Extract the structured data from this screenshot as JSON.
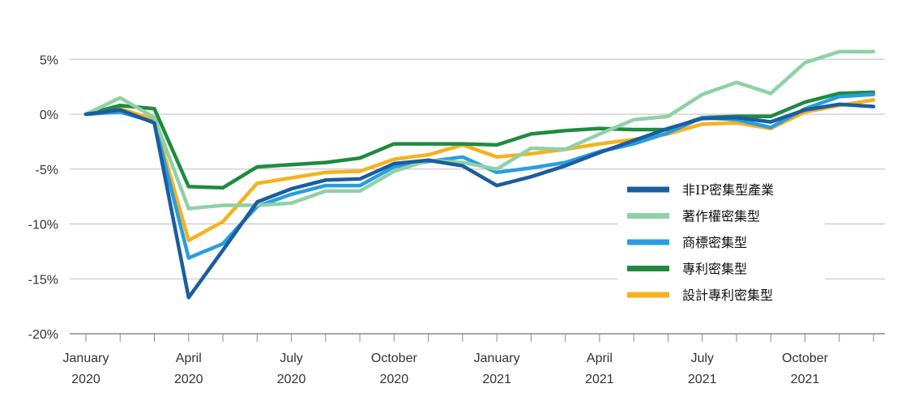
{
  "chart_data": {
    "type": "line",
    "title": "",
    "xlabel": "",
    "ylabel": "",
    "x": [
      "2020-01",
      "2020-02",
      "2020-03",
      "2020-04",
      "2020-05",
      "2020-06",
      "2020-07",
      "2020-08",
      "2020-09",
      "2020-10",
      "2020-11",
      "2020-12",
      "2021-01",
      "2021-02",
      "2021-03",
      "2021-04",
      "2021-05",
      "2021-06",
      "2021-07",
      "2021-08",
      "2021-09",
      "2021-10",
      "2021-11",
      "2021-12"
    ],
    "x_tick_labels": [
      {
        "x": "2020-01",
        "lines": [
          "January",
          "2020"
        ]
      },
      {
        "x": "2020-04",
        "lines": [
          "April",
          "2020"
        ]
      },
      {
        "x": "2020-07",
        "lines": [
          "July",
          "2020"
        ]
      },
      {
        "x": "2020-10",
        "lines": [
          "October",
          "2020"
        ]
      },
      {
        "x": "2021-01",
        "lines": [
          "January",
          "2021"
        ]
      },
      {
        "x": "2021-04",
        "lines": [
          "April",
          "2021"
        ]
      },
      {
        "x": "2021-07",
        "lines": [
          "July",
          "2021"
        ]
      },
      {
        "x": "2021-10",
        "lines": [
          "October",
          "2021"
        ]
      }
    ],
    "y_ticks": [
      5,
      0,
      -5,
      -10,
      -15,
      -20
    ],
    "y_tick_labels": [
      "5%",
      "0%",
      "-5%",
      "-10%",
      "-15%",
      "-20%"
    ],
    "ylim": [
      -20,
      6
    ],
    "grid": "horizontal",
    "legend_position": "bottom-right",
    "series": [
      {
        "name": "非IP密集型產業",
        "color": "#1b5d9e",
        "values": [
          0,
          0.4,
          -0.8,
          -16.7,
          -12.4,
          -8.0,
          -6.8,
          -6.0,
          -5.9,
          -4.5,
          -4.2,
          -4.7,
          -6.5,
          -5.7,
          -4.7,
          -3.5,
          -2.4,
          -1.3,
          -0.4,
          -0.3,
          -0.7,
          0.4,
          0.9,
          0.7
        ]
      },
      {
        "name": "著作權密集型",
        "color": "#8fd1a6",
        "values": [
          0,
          1.5,
          -0.3,
          -8.6,
          -8.3,
          -8.3,
          -8.1,
          -7.0,
          -7.0,
          -5.2,
          -4.2,
          -4.4,
          -5.0,
          -3.1,
          -3.2,
          -1.8,
          -0.5,
          -0.2,
          1.8,
          2.9,
          1.9,
          4.7,
          5.7,
          5.7
        ]
      },
      {
        "name": "商標密集型",
        "color": "#2a9de0",
        "values": [
          0,
          0.2,
          -0.7,
          -13.1,
          -11.8,
          -8.4,
          -7.3,
          -6.5,
          -6.5,
          -4.8,
          -4.3,
          -3.9,
          -5.3,
          -4.9,
          -4.4,
          -3.4,
          -2.7,
          -1.7,
          -0.3,
          -0.5,
          -1.2,
          0.5,
          1.6,
          1.8
        ]
      },
      {
        "name": "專利密集型",
        "color": "#1f8b3f",
        "values": [
          0,
          0.8,
          0.5,
          -6.6,
          -6.7,
          -4.8,
          -4.6,
          -4.4,
          -4.0,
          -2.7,
          -2.7,
          -2.7,
          -2.8,
          -1.8,
          -1.5,
          -1.3,
          -1.4,
          -1.4,
          -0.3,
          -0.2,
          -0.2,
          1.1,
          1.9,
          2.0
        ]
      },
      {
        "name": "設計專利密集型",
        "color": "#f5b21f",
        "values": [
          0,
          0.5,
          -0.5,
          -11.5,
          -9.8,
          -6.3,
          -5.8,
          -5.3,
          -5.2,
          -4.1,
          -3.7,
          -2.8,
          -3.9,
          -3.6,
          -3.2,
          -2.7,
          -2.3,
          -1.8,
          -0.9,
          -0.8,
          -1.3,
          0.2,
          0.8,
          1.3
        ]
      }
    ]
  }
}
